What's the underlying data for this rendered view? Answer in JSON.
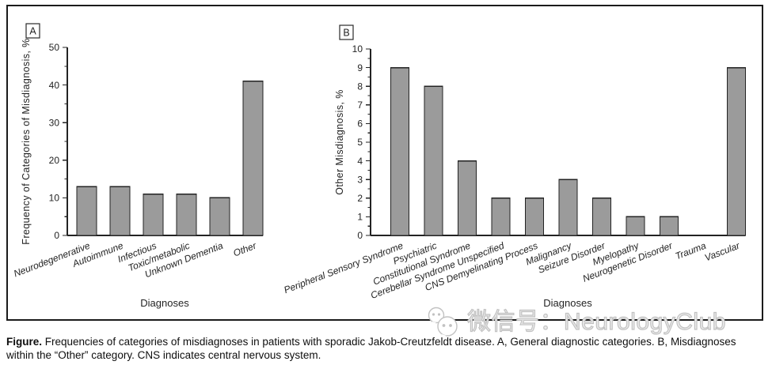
{
  "watermark": {
    "text": "微信号：NeurologyClub",
    "icon": "wechat-logo-icon",
    "color": "#c2c2c2"
  },
  "caption": {
    "prefix": "Figure.",
    "text": " Frequencies of categories of misdiagnoses in patients with sporadic Jakob-Creutzfeldt disease. A, General diagnostic categories. B, Misdiagnoses within the “Other” category. CNS indicates central nervous system."
  },
  "chart_data": [
    {
      "type": "bar",
      "panel_label": "A",
      "categories": [
        "Neurodegenerative",
        "Autoimmune",
        "Infectious",
        "Toxic/metabolic",
        "Unknown Dementia",
        "Other"
      ],
      "values": [
        13,
        13,
        11,
        11,
        10,
        41
      ],
      "xlabel": "Diagnoses",
      "ylabel": "Frequency of Categories of Misdiagnosis, %",
      "ylim": [
        0,
        50
      ],
      "yticks": [
        0,
        10,
        20,
        30,
        40,
        50
      ],
      "yminorticks": [
        5,
        15,
        25,
        35,
        45
      ],
      "grid": false,
      "bar_color": "#9b9b9b",
      "bar_edge_color": "#232323"
    },
    {
      "type": "bar",
      "panel_label": "B",
      "categories": [
        "Peripheral Sensory Syndrome",
        "Psychiatric",
        "Constitutional Syndrome",
        "Cerebellar Syndrome Unspecified",
        "CNS Demyelinating Process",
        "Malignancy",
        "Seizure Disorder",
        "Myelopathy",
        "Neurogenetic Disorder",
        "Trauma",
        "Vascular"
      ],
      "values": [
        9,
        8,
        4,
        2,
        2,
        3,
        2,
        1,
        1,
        0,
        9
      ],
      "xlabel": "Diagnoses",
      "ylabel": "Other Misdiagnosis, %",
      "ylim": [
        0,
        10
      ],
      "yticks": [
        0,
        1,
        2,
        3,
        4,
        5,
        6,
        7,
        8,
        9,
        10
      ],
      "yminorticks": [
        0.5,
        1.5,
        2.5,
        3.5,
        4.5,
        5.5,
        6.5,
        7.5,
        8.5,
        9.5
      ],
      "grid": false,
      "bar_color": "#9b9b9b",
      "bar_edge_color": "#232323"
    }
  ]
}
